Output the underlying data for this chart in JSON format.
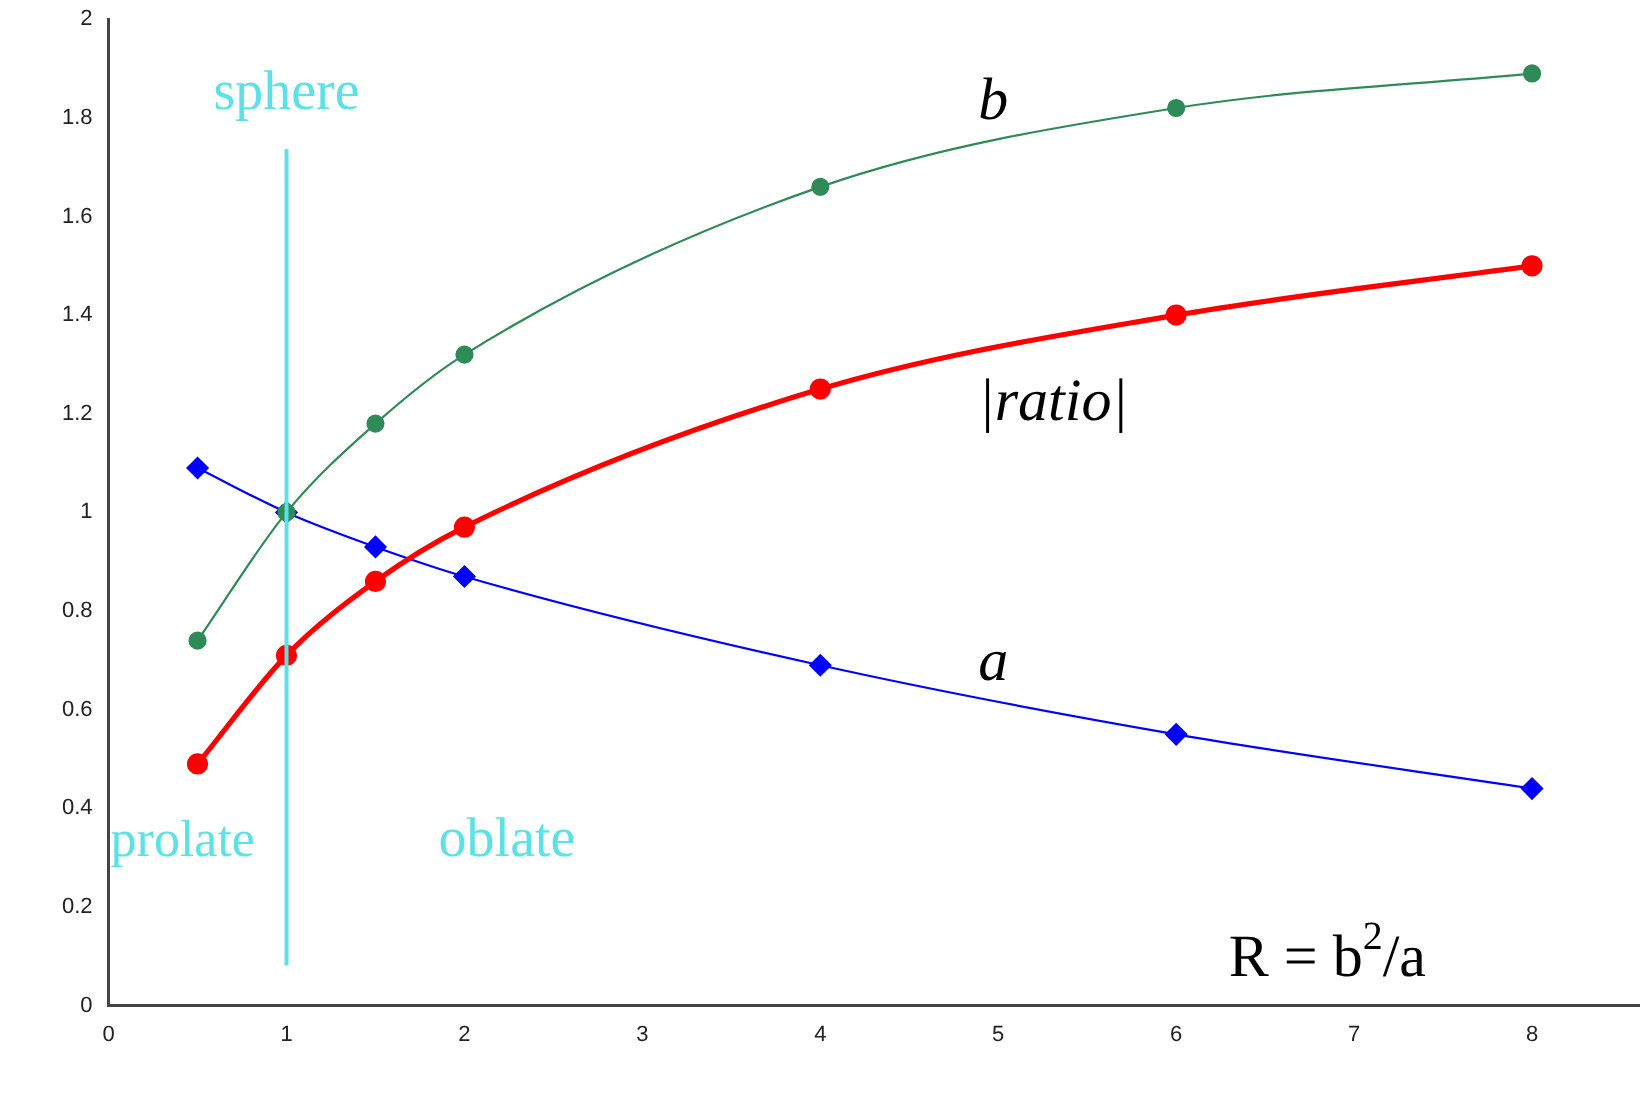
{
  "chart_data": {
    "type": "line",
    "x": [
      0.5,
      1,
      1.5,
      2,
      4,
      6,
      8
    ],
    "series": [
      {
        "name": "b",
        "color": "#2e8b57",
        "marker": "circle",
        "values": [
          0.74,
          1.0,
          1.18,
          1.32,
          1.66,
          1.82,
          1.89
        ]
      },
      {
        "name": "|ratio|",
        "color": "#ff0000",
        "marker": "circle",
        "values": [
          0.49,
          0.71,
          0.86,
          0.97,
          1.25,
          1.4,
          1.5
        ]
      },
      {
        "name": "a",
        "color": "#0000ff",
        "marker": "diamond",
        "values": [
          1.09,
          1.0,
          0.93,
          0.87,
          0.69,
          0.55,
          0.44
        ]
      }
    ],
    "xlim": [
      0,
      8.6
    ],
    "xticks": [
      0,
      1,
      2,
      3,
      4,
      5,
      6,
      7,
      8
    ],
    "ylim": [
      0,
      2
    ],
    "yticks": [
      0,
      0.2,
      0.4,
      0.6,
      0.8,
      1,
      1.2,
      1.4,
      1.6,
      1.8,
      2
    ],
    "grid": false,
    "legend": false,
    "ref_lines": [
      {
        "axis": "x",
        "value": 1,
        "label": "sphere",
        "color": "#5ce1e6"
      }
    ],
    "annotations": [
      "prolate",
      "oblate",
      "R = b$^{2}$/a"
    ]
  }
}
